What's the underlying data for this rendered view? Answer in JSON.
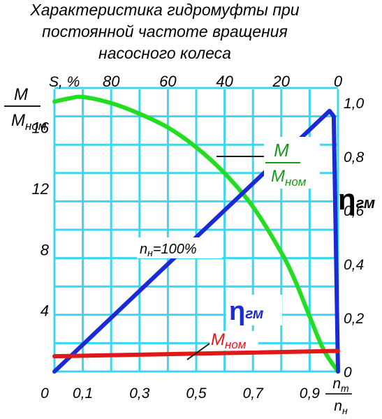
{
  "title_lines": [
    "Характеристика гидромуфты при",
    "постоянной частоте вращения",
    "насосного колеса"
  ],
  "colors": {
    "grid": "#3dd6ee",
    "torque": "#22dd22",
    "torque_label": "#1a9a1a",
    "efficiency": "#1a2bd6",
    "nominal": "#e01818",
    "text": "#1a1a1a"
  },
  "chart_data": {
    "type": "line",
    "x_axis": {
      "name": "i = n_т / n_н",
      "range": [
        0,
        1
      ],
      "ticks": [
        "0",
        "0,1",
        "0,3",
        "0,5",
        "0,7",
        "0,9"
      ],
      "tick_values": [
        0,
        0.1,
        0.3,
        0.5,
        0.7,
        0.9
      ]
    },
    "x_axis_label": {
      "num": "n",
      "num_sub": "т",
      "den": "n",
      "den_sub": "н"
    },
    "top_axis": {
      "name": "S, %",
      "ticks": [
        "80",
        "60",
        "40",
        "20",
        "0"
      ],
      "tick_values": [
        80,
        60,
        40,
        20,
        0
      ]
    },
    "left_axis": {
      "num": "M",
      "den": "M",
      "den_sub": "ном",
      "range": [
        0,
        18.5
      ],
      "ticks": [
        "16",
        "12",
        "8",
        "4"
      ],
      "tick_values": [
        16,
        12,
        8,
        4
      ]
    },
    "right_axis": {
      "symbol": "η",
      "sub": "гм",
      "range": [
        0,
        1.05
      ],
      "ticks": [
        "1,0",
        "0,8",
        "0,6",
        "0,4",
        "0,2",
        "0"
      ],
      "tick_values": [
        1.0,
        0.8,
        0.6,
        0.4,
        0.2,
        0
      ]
    },
    "grid": true,
    "annotation": {
      "main": "n",
      "sub": "н",
      "rest": "=100%"
    },
    "series": [
      {
        "name": "M/Mном",
        "axis": "left",
        "color": "#22dd22",
        "label": {
          "num": "M",
          "den": "M",
          "den_sub": "ном"
        },
        "points": [
          [
            0,
            17.7
          ],
          [
            0.05,
            17.9
          ],
          [
            0.1,
            18.0
          ],
          [
            0.2,
            17.6
          ],
          [
            0.3,
            16.9
          ],
          [
            0.4,
            16.0
          ],
          [
            0.5,
            14.7
          ],
          [
            0.6,
            13.0
          ],
          [
            0.7,
            10.8
          ],
          [
            0.8,
            7.8
          ],
          [
            0.85,
            5.9
          ],
          [
            0.9,
            3.6
          ],
          [
            0.95,
            1.4
          ],
          [
            1.0,
            0
          ]
        ]
      },
      {
        "name": "ηгм",
        "axis": "right",
        "color": "#1a2bd6",
        "label": {
          "symbol": "η",
          "sub": "гм"
        },
        "points": [
          [
            0,
            0
          ],
          [
            0.97,
            0.97
          ],
          [
            0.985,
            0.95
          ],
          [
            1.0,
            0
          ]
        ]
      },
      {
        "name": "Mном",
        "axis": "left",
        "color": "#e01818",
        "label": {
          "main": "M",
          "sub": "ном"
        },
        "points": [
          [
            0,
            1.0
          ],
          [
            1.0,
            1.35
          ]
        ]
      }
    ]
  }
}
